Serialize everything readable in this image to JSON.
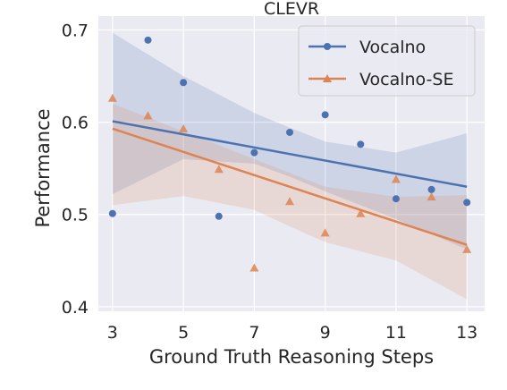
{
  "chart_data": {
    "type": "scatter",
    "title": "CLEVR",
    "xlabel": "Ground Truth Reasoning Steps",
    "ylabel": "Performance",
    "xlim": [
      2.6,
      13.5
    ],
    "ylim": [
      0.395,
      0.715
    ],
    "xticks": [
      3,
      5,
      7,
      9,
      11,
      13
    ],
    "yticks": [
      0.4,
      0.5,
      0.6,
      0.7
    ],
    "ytick_labels": [
      "0.4",
      "0.5",
      "0.6",
      "0.7"
    ],
    "grid": true,
    "legend_position": "top-right",
    "series": [
      {
        "name": "Vocalno",
        "marker": "circle",
        "color": "#4c72b0",
        "x": [
          3,
          4,
          5,
          6,
          7,
          8,
          9,
          10,
          11,
          12,
          13
        ],
        "y": [
          0.501,
          0.689,
          0.643,
          0.498,
          0.567,
          0.589,
          0.608,
          0.576,
          0.517,
          0.527,
          0.513
        ],
        "trend": {
          "x": [
            3,
            13
          ],
          "y": [
            0.601,
            0.53
          ]
        },
        "ci": {
          "x": [
            3,
            5,
            7,
            8,
            9,
            11,
            13
          ],
          "upper": [
            0.697,
            0.65,
            0.61,
            0.594,
            0.579,
            0.567,
            0.588
          ],
          "lower": [
            0.522,
            0.56,
            0.555,
            0.541,
            0.525,
            0.495,
            0.462
          ]
        }
      },
      {
        "name": "Vocalno-SE",
        "marker": "triangle",
        "color": "#dd8452",
        "x": [
          3,
          4,
          5,
          6,
          7,
          8,
          9,
          10,
          11,
          12,
          13
        ],
        "y": [
          0.626,
          0.607,
          0.593,
          0.549,
          0.442,
          0.514,
          0.48,
          0.501,
          0.538,
          0.519,
          0.462
        ],
        "trend": {
          "x": [
            3,
            13
          ],
          "y": [
            0.593,
            0.467
          ]
        },
        "ci": {
          "x": [
            3,
            5,
            7,
            8,
            9,
            11,
            13
          ],
          "upper": [
            0.62,
            0.59,
            0.56,
            0.545,
            0.53,
            0.519,
            0.521
          ],
          "lower": [
            0.51,
            0.52,
            0.505,
            0.487,
            0.47,
            0.45,
            0.408
          ]
        }
      }
    ]
  }
}
